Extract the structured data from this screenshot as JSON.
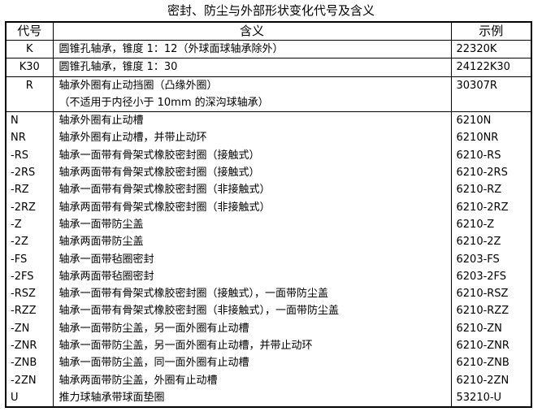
{
  "title": "密封、防尘与外部形状变化代号及含义",
  "table": {
    "headers": {
      "code": "代号",
      "meaning": "含义",
      "example": "示例"
    },
    "section1": [
      {
        "code": "K",
        "meaning": [
          "圆锥孔轴承，锥度 1：12（外球面球轴承除外）"
        ],
        "example": "22320K"
      },
      {
        "code": "K30",
        "meaning": [
          "圆锥孔轴承，锥度 1：30"
        ],
        "example": "24122K30"
      },
      {
        "code": "R",
        "meaning": [
          "轴承外圈有止动挡圈（凸缘外圈）",
          "（不适用于内径小于 10mm 的深沟球轴承）"
        ],
        "example": "30307R"
      }
    ],
    "section2": [
      {
        "code": "N",
        "meaning": "轴承外圈有止动槽",
        "example": "6210N"
      },
      {
        "code": "NR",
        "meaning": "轴承外圈有止动槽，并带止动环",
        "example": "6210NR"
      },
      {
        "code": "-RS",
        "meaning": "轴承一面带有骨架式橡胶密封圈（接触式）",
        "example": "6210-RS"
      },
      {
        "code": "-2RS",
        "meaning": "轴承两面带有骨架式橡胶密封圈（接触式）",
        "example": "6210-2RS"
      },
      {
        "code": "-RZ",
        "meaning": "轴承一面带有骨架式橡胶密封圈（非接触式）",
        "example": "6210-RZ"
      },
      {
        "code": "-2RZ",
        "meaning": "轴承两面带有骨架式橡胶密封圈（非接触式）",
        "example": "6210-2RZ"
      },
      {
        "code": "-Z",
        "meaning": "轴承一面带防尘盖",
        "example": "6210-Z"
      },
      {
        "code": "-2Z",
        "meaning": "轴承两面带防尘盖",
        "example": "6210-2Z"
      },
      {
        "code": "-FS",
        "meaning": "轴承一面带毡圈密封",
        "example": "6203-FS"
      },
      {
        "code": "-2FS",
        "meaning": "轴承两面带毡圈密封",
        "example": "6203-2FS"
      },
      {
        "code": "-RSZ",
        "meaning": "轴承一面带有骨架式橡胶密封圈（接触式），一面带防尘盖",
        "example": "6210-RSZ"
      },
      {
        "code": "-RZZ",
        "meaning": "轴承一面带有骨架式橡胶密封圈（非接触式），一面带防尘盖",
        "example": "6210-RZZ"
      },
      {
        "code": "-ZN",
        "meaning": "轴承一面带防尘盖，另一面外圈有止动槽",
        "example": "6210-ZN"
      },
      {
        "code": "-ZNR",
        "meaning": "轴承一面带防尘盖，另一面外圈有止动槽，并带止动环",
        "example": "6210-ZNR"
      },
      {
        "code": "-ZNB",
        "meaning": "轴承一面带防尘盖，同一面外圈有止动槽",
        "example": "6210-ZNB"
      },
      {
        "code": "-2ZN",
        "meaning": "轴承两面带防尘盖，外圈有止动槽",
        "example": "6210-2ZN"
      },
      {
        "code": "U",
        "meaning": "推力球轴承带球面垫圈",
        "example": "53210-U"
      }
    ]
  }
}
